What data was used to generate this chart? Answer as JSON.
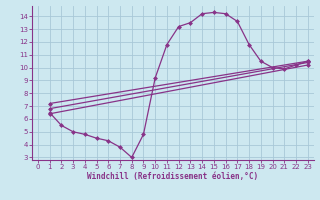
{
  "xlabel": "Windchill (Refroidissement éolien,°C)",
  "bg_color": "#cde8f0",
  "grid_color": "#a8c8d8",
  "line_color": "#883388",
  "xlim": [
    -0.5,
    23.5
  ],
  "ylim": [
    2.8,
    14.8
  ],
  "xticks": [
    0,
    1,
    2,
    3,
    4,
    5,
    6,
    7,
    8,
    9,
    10,
    11,
    12,
    13,
    14,
    15,
    16,
    17,
    18,
    19,
    20,
    21,
    22,
    23
  ],
  "yticks": [
    3,
    4,
    5,
    6,
    7,
    8,
    9,
    10,
    11,
    12,
    13,
    14
  ],
  "curve_main_x": [
    1,
    2,
    3,
    4,
    5,
    6,
    7,
    8,
    9,
    10,
    11,
    12,
    13,
    14,
    15,
    16,
    17,
    18,
    19,
    20,
    21,
    22,
    23
  ],
  "curve_main_y": [
    6.5,
    5.5,
    5.0,
    4.8,
    4.5,
    4.3,
    3.8,
    3.0,
    4.8,
    9.2,
    11.8,
    13.2,
    13.5,
    14.2,
    14.3,
    14.2,
    13.6,
    11.8,
    10.5,
    10.0,
    9.9,
    10.2,
    10.5
  ],
  "line1_x": [
    1,
    23
  ],
  "line1_y": [
    7.2,
    10.5
  ],
  "line2_x": [
    1,
    23
  ],
  "line2_y": [
    6.8,
    10.4
  ],
  "line3_x": [
    1,
    23
  ],
  "line3_y": [
    6.4,
    10.2
  ],
  "markersize": 2.5,
  "linewidth": 0.9
}
